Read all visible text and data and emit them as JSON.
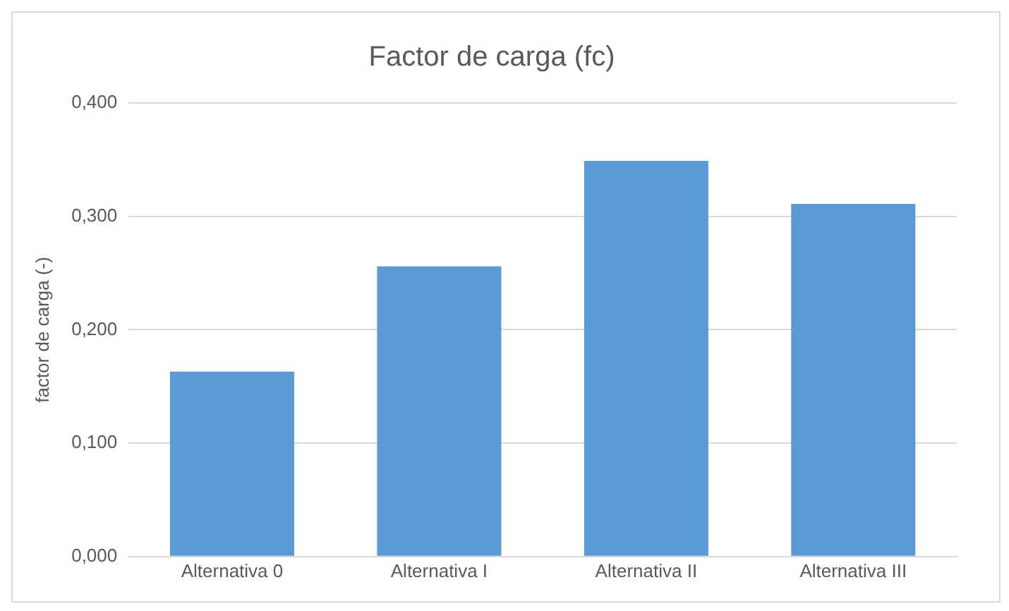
{
  "chart_data": {
    "type": "bar",
    "title": "Factor de carga (fc)",
    "ylabel": "factor de carga (-)",
    "categories": [
      "Alternativa 0",
      "Alternativa I",
      "Alternativa II",
      "Alternativa III"
    ],
    "values": [
      0.163,
      0.256,
      0.349,
      0.311
    ],
    "color": "#5b9bd5",
    "ylim": [
      0,
      0.4
    ],
    "yticks": [
      {
        "value": 0,
        "label": "0,000"
      },
      {
        "value": 0.1,
        "label": "0,100"
      },
      {
        "value": 0.2,
        "label": "0,200"
      },
      {
        "value": 0.3,
        "label": "0,300"
      },
      {
        "value": 0.4,
        "label": "0,400"
      }
    ],
    "grid": "y",
    "legend": false
  }
}
